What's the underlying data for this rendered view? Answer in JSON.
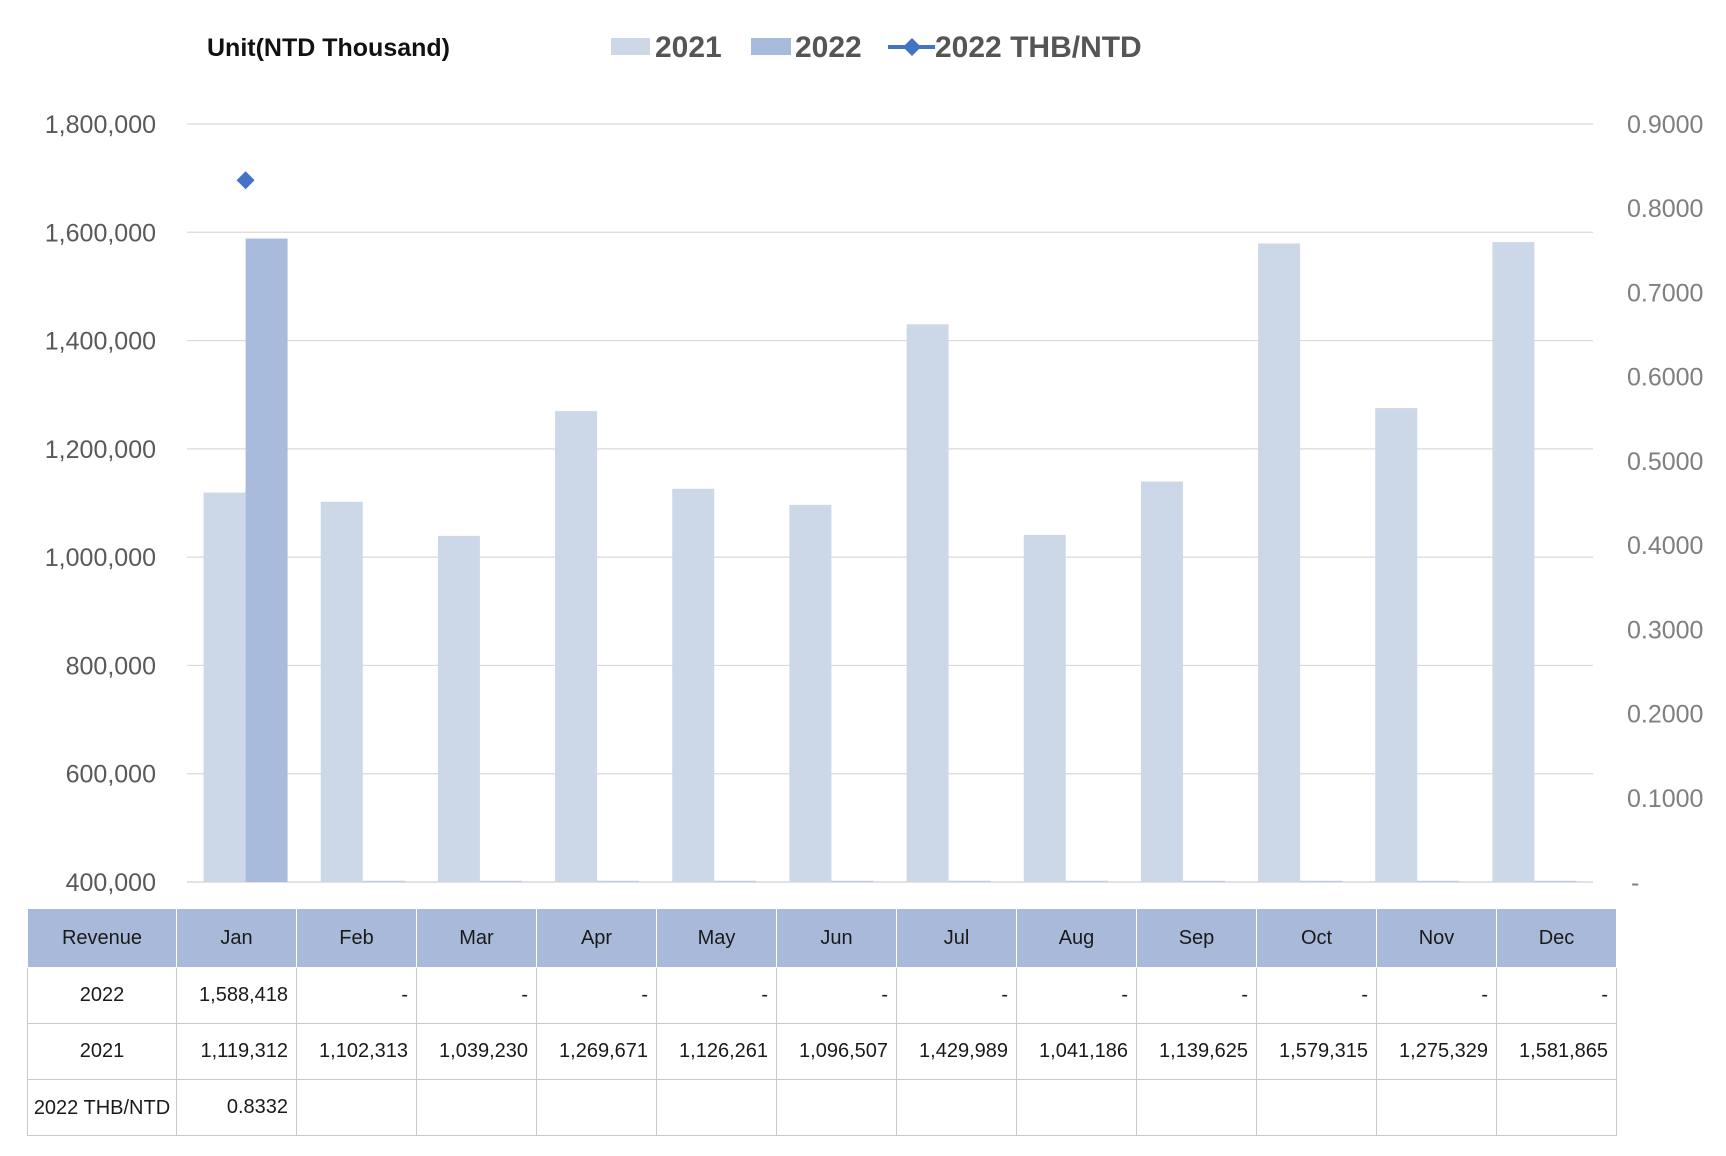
{
  "chart_data": {
    "type": "bar",
    "unit_label": "Unit(NTD  Thousand)",
    "categories": [
      "Jan",
      "Feb",
      "Mar",
      "Apr",
      "May",
      "Jun",
      "Jul",
      "Aug",
      "Sep",
      "Oct",
      "Nov",
      "Dec"
    ],
    "series": [
      {
        "name": "2021",
        "type": "bar",
        "axis": "left",
        "color": "#ccd7e8",
        "values": [
          1119312,
          1102313,
          1039230,
          1269671,
          1126261,
          1096507,
          1429989,
          1041186,
          1139625,
          1579315,
          1275329,
          1581865
        ]
      },
      {
        "name": "2022",
        "type": "bar",
        "axis": "left",
        "color": "#a9bbdc",
        "values": [
          1588418,
          null,
          null,
          null,
          null,
          null,
          null,
          null,
          null,
          null,
          null,
          null
        ]
      },
      {
        "name": "2022 THB/NTD",
        "type": "line",
        "axis": "right",
        "color": "#4472c4",
        "marker": "diamond",
        "values": [
          0.8332,
          null,
          null,
          null,
          null,
          null,
          null,
          null,
          null,
          null,
          null,
          null
        ]
      }
    ],
    "ylim_left": [
      400000,
      1800000
    ],
    "ylim_right": [
      0,
      0.9
    ],
    "yticks_left": [
      "400,000",
      "600,000",
      "800,000",
      "1,000,000",
      "1,200,000",
      "1,400,000",
      "1,600,000",
      "1,800,000"
    ],
    "yticks_right": [
      "-",
      "0.1000",
      "0.2000",
      "0.3000",
      "0.4000",
      "0.5000",
      "0.6000",
      "0.7000",
      "0.8000",
      "0.9000"
    ],
    "grid": true,
    "legend_position": "top"
  },
  "table": {
    "header_label": "Revenue",
    "months": [
      "Jan",
      "Feb",
      "Mar",
      "Apr",
      "May",
      "Jun",
      "Jul",
      "Aug",
      "Sep",
      "Oct",
      "Nov",
      "Dec"
    ],
    "rows": [
      {
        "label": "2022",
        "cells": [
          "1,588,418",
          "-",
          "-",
          "-",
          "-",
          "-",
          "-",
          "-",
          "-",
          "-",
          "-",
          "-"
        ]
      },
      {
        "label": "2021",
        "cells": [
          "1,119,312",
          "1,102,313",
          "1,039,230",
          "1,269,671",
          "1,126,261",
          "1,096,507",
          "1,429,989",
          "1,041,186",
          "1,139,625",
          "1,579,315",
          "1,275,329",
          "1,581,865"
        ]
      },
      {
        "label": "2022 THB/NTD",
        "cells": [
          "0.8332",
          "",
          "",
          "",
          "",
          "",
          "",
          "",
          "",
          "",
          "",
          ""
        ]
      }
    ]
  }
}
